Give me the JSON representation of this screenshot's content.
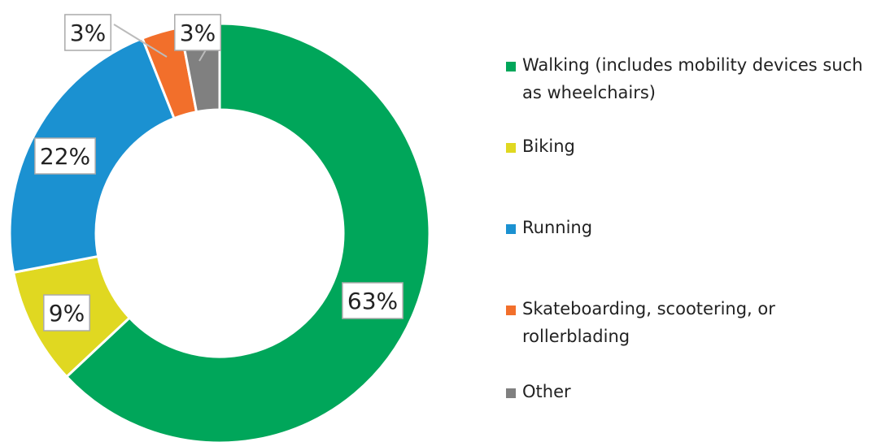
{
  "chart_data": {
    "type": "pie",
    "categories": [
      "Walking (includes mobility devices such as wheelchairs)",
      "Biking",
      "Running",
      "Skateboarding, scootering, or rollerblading",
      "Other"
    ],
    "values": [
      63,
      9,
      22,
      3,
      3
    ],
    "value_labels": [
      "63%",
      "9%",
      "22%",
      "3%",
      "3%"
    ],
    "colors": [
      "#00a65a",
      "#e0d821",
      "#1b91d1",
      "#f26f2b",
      "#808080"
    ],
    "legend": "right"
  }
}
